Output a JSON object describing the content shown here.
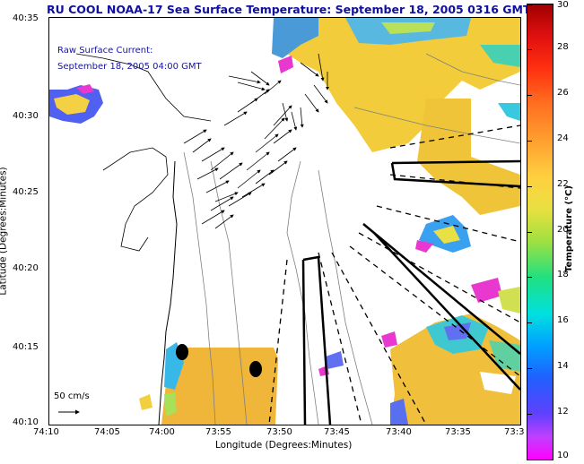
{
  "title": "RU COOL  NOAA-17  Sea Surface Temperature:  September 18, 2005 0316 GMT",
  "annotation": {
    "line1": "Raw Surface Current:",
    "line2": "September 18, 2005 04:00 GMT"
  },
  "scale": {
    "label": "50 cm/s"
  },
  "axes": {
    "xlabel": "Longitude (Degrees:Minutes)",
    "ylabel": "Latitude (Degrees:Minutes)",
    "xticks": [
      "74:10",
      "74:05",
      "74:00",
      "73:55",
      "73:50",
      "73:45",
      "73:40",
      "73:35",
      "73:3"
    ],
    "yticks": [
      "40:35",
      "40:30",
      "40:25",
      "40:20",
      "40:15",
      "40:10"
    ]
  },
  "colorbar": {
    "label": "Temperature (°C)",
    "ticks": [
      "30",
      "28",
      "26",
      "24",
      "22",
      "20",
      "18",
      "16",
      "14",
      "12",
      "10"
    ],
    "range": [
      10,
      30
    ]
  }
}
